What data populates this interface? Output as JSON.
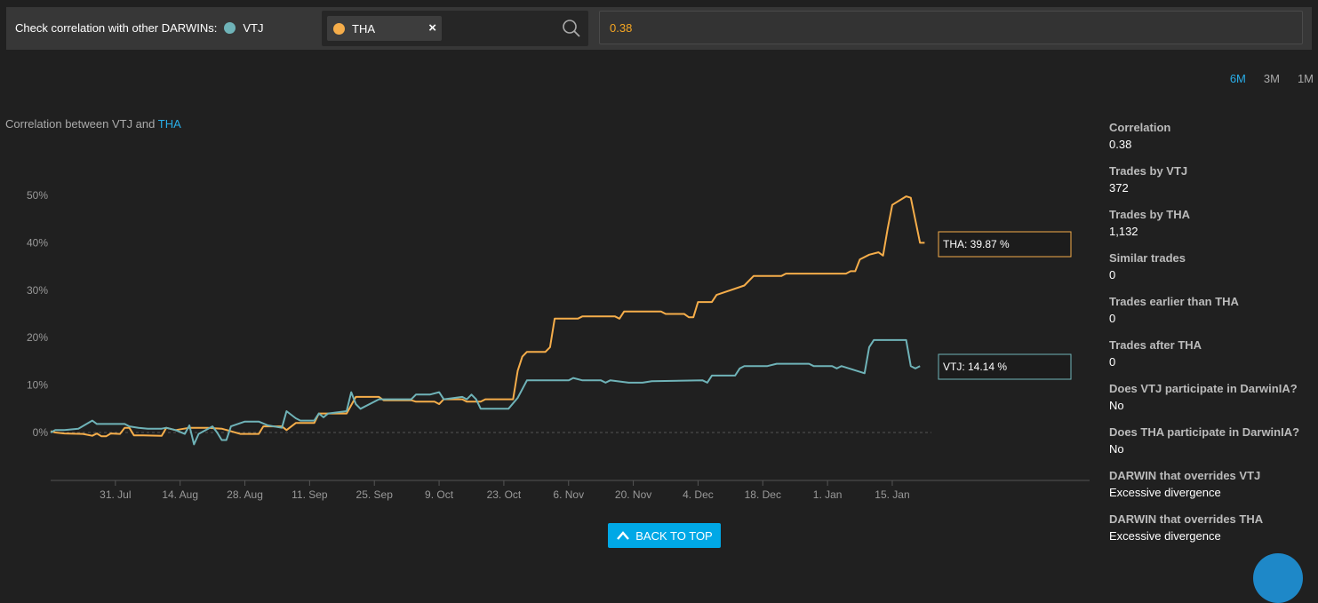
{
  "header": {
    "label": "Check correlation with other DARWINs:",
    "base_darwin": "VTJ",
    "base_color": "#6fb3b8",
    "selected_chip": "THA",
    "selected_color": "#f5ad4a",
    "chip_close": "×",
    "correlation_value": "0.38"
  },
  "ranges": [
    "6M",
    "3M",
    "1M"
  ],
  "active_range": "6M",
  "chart_title": {
    "prefix": "Correlation between VTJ and",
    "highlight": "THA"
  },
  "chart_data": {
    "type": "line",
    "x_ticks": [
      "31. Jul",
      "14. Aug",
      "28. Aug",
      "11. Sep",
      "25. Sep",
      "9. Oct",
      "23. Oct",
      "6. Nov",
      "20. Nov",
      "4. Dec",
      "18. Dec",
      "1. Jan",
      "15. Jan"
    ],
    "y_ticks": [
      "0%",
      "10%",
      "20%",
      "30%",
      "40%",
      "50%"
    ],
    "ylim": [
      0,
      50
    ],
    "x_domain": [
      "2018-07-17",
      "2019-01-25"
    ],
    "series": [
      {
        "name": "THA",
        "color": "#f5ad4a",
        "tooltip": "THA: 39.87 %",
        "points": [
          [
            "2018-07-17",
            0.3
          ],
          [
            "2018-07-18",
            0
          ],
          [
            "2018-07-20",
            -0.2
          ],
          [
            "2018-07-24",
            -0.3
          ],
          [
            "2018-07-26",
            -0.7
          ],
          [
            "2018-07-27",
            -0.2
          ],
          [
            "2018-07-28",
            -0.8
          ],
          [
            "2018-07-29",
            -0.8
          ],
          [
            "2018-07-30",
            -0.2
          ],
          [
            "2018-08-01",
            -0.3
          ],
          [
            "2018-08-02",
            1
          ],
          [
            "2018-08-03",
            1
          ],
          [
            "2018-08-04",
            -0.6
          ],
          [
            "2018-08-06",
            -0.6
          ],
          [
            "2018-08-10",
            -0.7
          ],
          [
            "2018-08-11",
            1
          ],
          [
            "2018-08-13",
            0.5
          ],
          [
            "2018-08-16",
            1
          ],
          [
            "2018-08-20",
            1
          ],
          [
            "2018-08-23",
            0.8
          ],
          [
            "2018-08-27",
            -0.3
          ],
          [
            "2018-08-31",
            -0.3
          ],
          [
            "2018-09-01",
            1.3
          ],
          [
            "2018-09-05",
            1.3
          ],
          [
            "2018-09-06",
            0.5
          ],
          [
            "2018-09-08",
            2
          ],
          [
            "2018-09-12",
            2
          ],
          [
            "2018-09-13",
            4
          ],
          [
            "2018-09-19",
            4
          ],
          [
            "2018-09-21",
            7.5
          ],
          [
            "2018-09-26",
            7.5
          ],
          [
            "2018-09-27",
            6.8
          ],
          [
            "2018-10-03",
            6.8
          ],
          [
            "2018-10-04",
            6.5
          ],
          [
            "2018-10-08",
            6.5
          ],
          [
            "2018-10-09",
            6
          ],
          [
            "2018-10-10",
            7
          ],
          [
            "2018-10-14",
            7
          ],
          [
            "2018-10-15",
            6.5
          ],
          [
            "2018-10-18",
            6.5
          ],
          [
            "2018-10-19",
            7
          ],
          [
            "2018-10-25",
            7
          ],
          [
            "2018-10-26",
            13
          ],
          [
            "2018-10-27",
            16
          ],
          [
            "2018-10-28",
            17
          ],
          [
            "2018-11-01",
            17
          ],
          [
            "2018-11-02",
            18
          ],
          [
            "2018-11-03",
            24
          ],
          [
            "2018-11-08",
            24
          ],
          [
            "2018-11-09",
            24.5
          ],
          [
            "2018-11-16",
            24.5
          ],
          [
            "2018-11-17",
            24
          ],
          [
            "2018-11-18",
            25.5
          ],
          [
            "2018-11-26",
            25.5
          ],
          [
            "2018-11-27",
            25
          ],
          [
            "2018-12-01",
            25
          ],
          [
            "2018-12-02",
            24.3
          ],
          [
            "2018-12-03",
            24.3
          ],
          [
            "2018-12-04",
            27.5
          ],
          [
            "2018-12-06",
            27.5
          ],
          [
            "2018-12-07",
            27.5
          ],
          [
            "2018-12-08",
            29
          ],
          [
            "2018-12-14",
            31
          ],
          [
            "2018-12-16",
            33
          ],
          [
            "2018-12-22",
            33
          ],
          [
            "2018-12-23",
            33.5
          ],
          [
            "2019-01-05",
            33.5
          ],
          [
            "2019-01-06",
            34
          ],
          [
            "2019-01-07",
            34
          ],
          [
            "2019-01-08",
            36.5
          ],
          [
            "2019-01-10",
            37.5
          ],
          [
            "2019-01-12",
            38
          ],
          [
            "2019-01-13",
            37.3
          ],
          [
            "2019-01-14",
            43
          ],
          [
            "2019-01-15",
            48
          ],
          [
            "2019-01-18",
            49.8
          ],
          [
            "2019-01-19",
            49.5
          ],
          [
            "2019-01-21",
            40
          ],
          [
            "2019-01-22",
            40
          ]
        ]
      },
      {
        "name": "VTJ",
        "color": "#6fb3b8",
        "tooltip": "VTJ: 14.14 %",
        "points": [
          [
            "2018-07-17",
            0
          ],
          [
            "2018-07-18",
            0.5
          ],
          [
            "2018-07-20",
            0.5
          ],
          [
            "2018-07-23",
            0.8
          ],
          [
            "2018-07-26",
            2.5
          ],
          [
            "2018-07-27",
            1.8
          ],
          [
            "2018-08-02",
            1.8
          ],
          [
            "2018-08-03",
            1.3
          ],
          [
            "2018-08-05",
            1
          ],
          [
            "2018-08-07",
            0.8
          ],
          [
            "2018-08-10",
            0.8
          ],
          [
            "2018-08-11",
            1
          ],
          [
            "2018-08-13",
            0.5
          ],
          [
            "2018-08-15",
            -0.3
          ],
          [
            "2018-08-16",
            1.5
          ],
          [
            "2018-08-17",
            -2.5
          ],
          [
            "2018-08-18",
            -0.3
          ],
          [
            "2018-08-21",
            1.3
          ],
          [
            "2018-08-22",
            0
          ],
          [
            "2018-08-23",
            -1.6
          ],
          [
            "2018-08-24",
            -1.6
          ],
          [
            "2018-08-25",
            1.3
          ],
          [
            "2018-08-28",
            2.3
          ],
          [
            "2018-08-31",
            2.3
          ],
          [
            "2018-09-02",
            1.5
          ],
          [
            "2018-09-05",
            1
          ],
          [
            "2018-09-06",
            4.5
          ],
          [
            "2018-09-08",
            3
          ],
          [
            "2018-09-09",
            2.5
          ],
          [
            "2018-09-12",
            2.5
          ],
          [
            "2018-09-13",
            4
          ],
          [
            "2018-09-14",
            3.2
          ],
          [
            "2018-09-15",
            4
          ],
          [
            "2018-09-19",
            4.5
          ],
          [
            "2018-09-20",
            8.5
          ],
          [
            "2018-09-21",
            6
          ],
          [
            "2018-09-22",
            5
          ],
          [
            "2018-09-26",
            7
          ],
          [
            "2018-09-28",
            7
          ],
          [
            "2018-10-03",
            7
          ],
          [
            "2018-10-04",
            8
          ],
          [
            "2018-10-07",
            8
          ],
          [
            "2018-10-09",
            8.5
          ],
          [
            "2018-10-10",
            7
          ],
          [
            "2018-10-14",
            7.5
          ],
          [
            "2018-10-15",
            7
          ],
          [
            "2018-10-16",
            8
          ],
          [
            "2018-10-17",
            7
          ],
          [
            "2018-10-18",
            5
          ],
          [
            "2018-10-24",
            5
          ],
          [
            "2018-10-26",
            7.3
          ],
          [
            "2018-10-28",
            11
          ],
          [
            "2018-11-04",
            11
          ],
          [
            "2018-11-06",
            11
          ],
          [
            "2018-11-07",
            11.5
          ],
          [
            "2018-11-09",
            11
          ],
          [
            "2018-11-13",
            11
          ],
          [
            "2018-11-14",
            10.5
          ],
          [
            "2018-11-15",
            11
          ],
          [
            "2018-11-19",
            10.5
          ],
          [
            "2018-11-22",
            10.5
          ],
          [
            "2018-11-24",
            10.8
          ],
          [
            "2018-12-05",
            11
          ],
          [
            "2018-12-06",
            10.5
          ],
          [
            "2018-12-07",
            12
          ],
          [
            "2018-12-12",
            12
          ],
          [
            "2018-12-13",
            13.5
          ],
          [
            "2018-12-14",
            14
          ],
          [
            "2018-12-19",
            14
          ],
          [
            "2018-12-21",
            14.5
          ],
          [
            "2018-12-28",
            14.5
          ],
          [
            "2018-12-29",
            14
          ],
          [
            "2019-01-02",
            14
          ],
          [
            "2019-01-03",
            13.5
          ],
          [
            "2019-01-04",
            14
          ],
          [
            "2019-01-09",
            12.5
          ],
          [
            "2019-01-10",
            18
          ],
          [
            "2019-01-11",
            19.5
          ],
          [
            "2019-01-18",
            19.5
          ],
          [
            "2019-01-19",
            14
          ],
          [
            "2019-01-20",
            13.5
          ],
          [
            "2019-01-21",
            14
          ]
        ]
      }
    ]
  },
  "stats": [
    {
      "label": "Correlation",
      "value": "0.38"
    },
    {
      "label": "Trades by VTJ",
      "value": "372"
    },
    {
      "label": "Trades by THA",
      "value": "1,132"
    },
    {
      "label": "Similar trades",
      "value": "0"
    },
    {
      "label": "Trades earlier than THA",
      "value": "0"
    },
    {
      "label": "Trades after THA",
      "value": "0"
    },
    {
      "label": "Does VTJ participate in DarwinIA?",
      "value": "No"
    },
    {
      "label": "Does THA participate in DarwinIA?",
      "value": "No"
    },
    {
      "label": "DARWIN that overrides VTJ",
      "value": "Excessive divergence"
    },
    {
      "label": "DARWIN that overrides THA",
      "value": "Excessive divergence"
    }
  ],
  "back_to_top": "BACK TO TOP"
}
